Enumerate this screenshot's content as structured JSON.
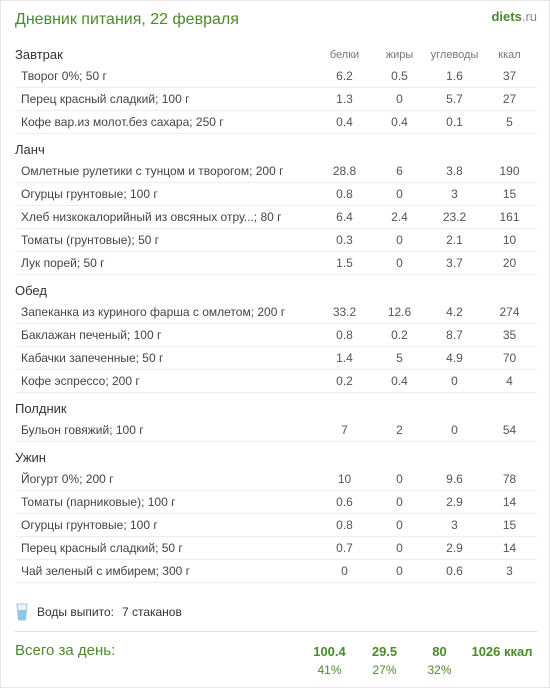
{
  "logo": {
    "brand": "diets",
    "tld": ".ru"
  },
  "title": "Дневник питания, 22 февраля",
  "columns": {
    "protein": "белки",
    "fat": "жиры",
    "carbs": "углеводы",
    "kcal": "ккал"
  },
  "meals": [
    {
      "name": "Завтрак",
      "items": [
        {
          "food": "Творог 0%; 50 г",
          "p": "6.2",
          "f": "0.5",
          "c": "1.6",
          "k": "37"
        },
        {
          "food": "Перец красный сладкий; 100 г",
          "p": "1.3",
          "f": "0",
          "c": "5.7",
          "k": "27"
        },
        {
          "food": "Кофе вар.из молот.без сахара; 250 г",
          "p": "0.4",
          "f": "0.4",
          "c": "0.1",
          "k": "5"
        }
      ]
    },
    {
      "name": "Ланч",
      "items": [
        {
          "food": "Омлетные рулетики с тунцом и творогом; 200 г",
          "p": "28.8",
          "f": "6",
          "c": "3.8",
          "k": "190"
        },
        {
          "food": "Огурцы грунтовые; 100 г",
          "p": "0.8",
          "f": "0",
          "c": "3",
          "k": "15"
        },
        {
          "food": "Хлеб низкокалорийный из овсяных отру...; 80 г",
          "p": "6.4",
          "f": "2.4",
          "c": "23.2",
          "k": "161"
        },
        {
          "food": "Томаты (грунтовые); 50 г",
          "p": "0.3",
          "f": "0",
          "c": "2.1",
          "k": "10"
        },
        {
          "food": "Лук порей; 50 г",
          "p": "1.5",
          "f": "0",
          "c": "3.7",
          "k": "20"
        }
      ]
    },
    {
      "name": "Обед",
      "items": [
        {
          "food": "Запеканка из куриного фарша с омлетом; 200 г",
          "p": "33.2",
          "f": "12.6",
          "c": "4.2",
          "k": "274"
        },
        {
          "food": "Баклажан печеный; 100 г",
          "p": "0.8",
          "f": "0.2",
          "c": "8.7",
          "k": "35"
        },
        {
          "food": "Кабачки запеченные; 50 г",
          "p": "1.4",
          "f": "5",
          "c": "4.9",
          "k": "70"
        },
        {
          "food": "Кофе эспрессо; 200 г",
          "p": "0.2",
          "f": "0.4",
          "c": "0",
          "k": "4"
        }
      ]
    },
    {
      "name": "Полдник",
      "items": [
        {
          "food": "Бульон говяжий; 100 г",
          "p": "7",
          "f": "2",
          "c": "0",
          "k": "54"
        }
      ]
    },
    {
      "name": "Ужин",
      "items": [
        {
          "food": "Йогурт 0%; 200 г",
          "p": "10",
          "f": "0",
          "c": "9.6",
          "k": "78"
        },
        {
          "food": "Томаты (парниковые); 100 г",
          "p": "0.6",
          "f": "0",
          "c": "2.9",
          "k": "14"
        },
        {
          "food": "Огурцы грунтовые; 100 г",
          "p": "0.8",
          "f": "0",
          "c": "3",
          "k": "15"
        },
        {
          "food": "Перец красный сладкий; 50 г",
          "p": "0.7",
          "f": "0",
          "c": "2.9",
          "k": "14"
        },
        {
          "food": "Чай зеленый с имбирем; 300 г",
          "p": "0",
          "f": "0",
          "c": "0.6",
          "k": "3"
        }
      ]
    }
  ],
  "water": {
    "label": "Воды выпито:",
    "value": "7 стаканов"
  },
  "totals": {
    "label": "Всего за день:",
    "p": "100.4",
    "f": "29.5",
    "c": "80",
    "k": "1026 ккал",
    "p_pct": "41%",
    "f_pct": "27%",
    "c_pct": "32%"
  },
  "style": {
    "accent": "#4a8a2a",
    "border": "#eeeeee",
    "text": "#333333",
    "muted": "#777777"
  }
}
